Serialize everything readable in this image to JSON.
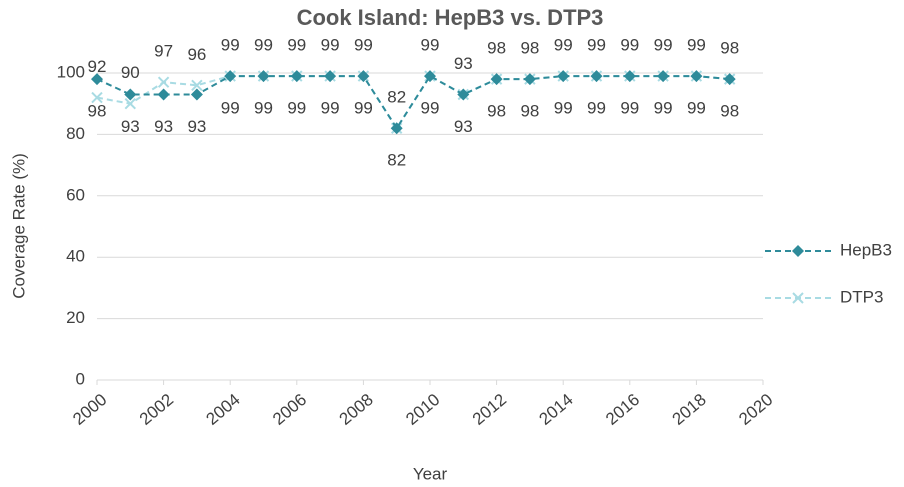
{
  "chart_data": {
    "type": "line",
    "title": "Cook Island: HepB3 vs. DTP3",
    "x_label": "Year",
    "y_label": "Coverage Rate (%)",
    "x": [
      2000,
      2001,
      2002,
      2003,
      2004,
      2005,
      2006,
      2007,
      2008,
      2009,
      2010,
      2011,
      2012,
      2013,
      2014,
      2015,
      2016,
      2017,
      2018,
      2019
    ],
    "series": [
      {
        "name": "HepB3",
        "color": "#2e8b9a",
        "marker": "diamond",
        "values": [
          98,
          93,
          93,
          93,
          99,
          99,
          99,
          99,
          99,
          82,
          99,
          93,
          98,
          98,
          99,
          99,
          99,
          99,
          99,
          98
        ]
      },
      {
        "name": "DTP3",
        "color": "#a8dbe3",
        "marker": "x",
        "values": [
          92,
          90,
          97,
          96,
          99,
          99,
          99,
          99,
          99,
          82,
          99,
          93,
          98,
          98,
          99,
          99,
          99,
          99,
          99,
          98
        ]
      }
    ],
    "xlim": [
      2000,
      2020
    ],
    "xticks": [
      2000,
      2002,
      2004,
      2006,
      2008,
      2010,
      2012,
      2014,
      2016,
      2018,
      2020
    ],
    "ylim": [
      0,
      100
    ],
    "yticks": [
      0,
      20,
      40,
      60,
      80,
      100
    ],
    "grid": true,
    "legend": "right"
  }
}
